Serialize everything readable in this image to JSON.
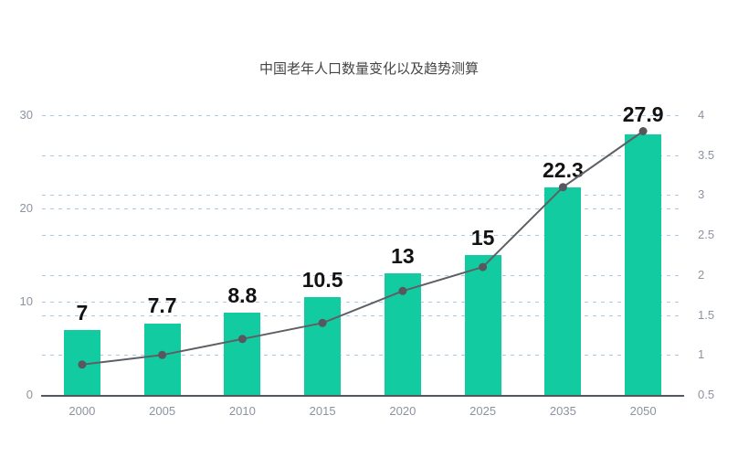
{
  "title": "中国老年人口数量变化以及趋势测算",
  "colors": {
    "bar": "#13cba1",
    "line": "#5e6065",
    "marker": "#56585d",
    "grid": "#abc8e9",
    "axis_line": "#53575e",
    "axis_label": "#8c93a0",
    "title": "#454545",
    "data_label": "#121212"
  },
  "chart_data": {
    "type": "bar",
    "title": "中国老年人口数量变化以及趋势测算",
    "categories": [
      "2000",
      "2005",
      "2010",
      "2015",
      "2020",
      "2025",
      "2035",
      "2050"
    ],
    "series": [
      {
        "name": "elderly-population-bars",
        "type": "bar",
        "axis": "left",
        "values": [
          7,
          7.7,
          8.8,
          10.5,
          13,
          15,
          22.3,
          27.9
        ],
        "labels": [
          "7",
          "7.7",
          "8.8",
          "10.5",
          "13",
          "15",
          "22.3",
          "27.9"
        ]
      },
      {
        "name": "trend-line",
        "type": "line",
        "axis": "right",
        "values": [
          0.88,
          1.0,
          1.2,
          1.4,
          1.8,
          2.1,
          3.1,
          3.8
        ]
      }
    ],
    "left_axis": {
      "min": 0,
      "max": 30,
      "ticks": [
        0,
        10,
        20,
        30
      ],
      "tick_labels": [
        "0",
        "10",
        "20",
        "30"
      ]
    },
    "right_axis": {
      "min": 0.5,
      "max": 4,
      "ticks": [
        0.5,
        1,
        1.5,
        2,
        2.5,
        3,
        3.5,
        4
      ],
      "tick_labels": [
        "0.5",
        "1",
        "1.5",
        "2",
        "2.5",
        "3",
        "3.5",
        "4"
      ]
    },
    "grid": true,
    "legend": false,
    "xlabel": "",
    "ylabel": ""
  }
}
